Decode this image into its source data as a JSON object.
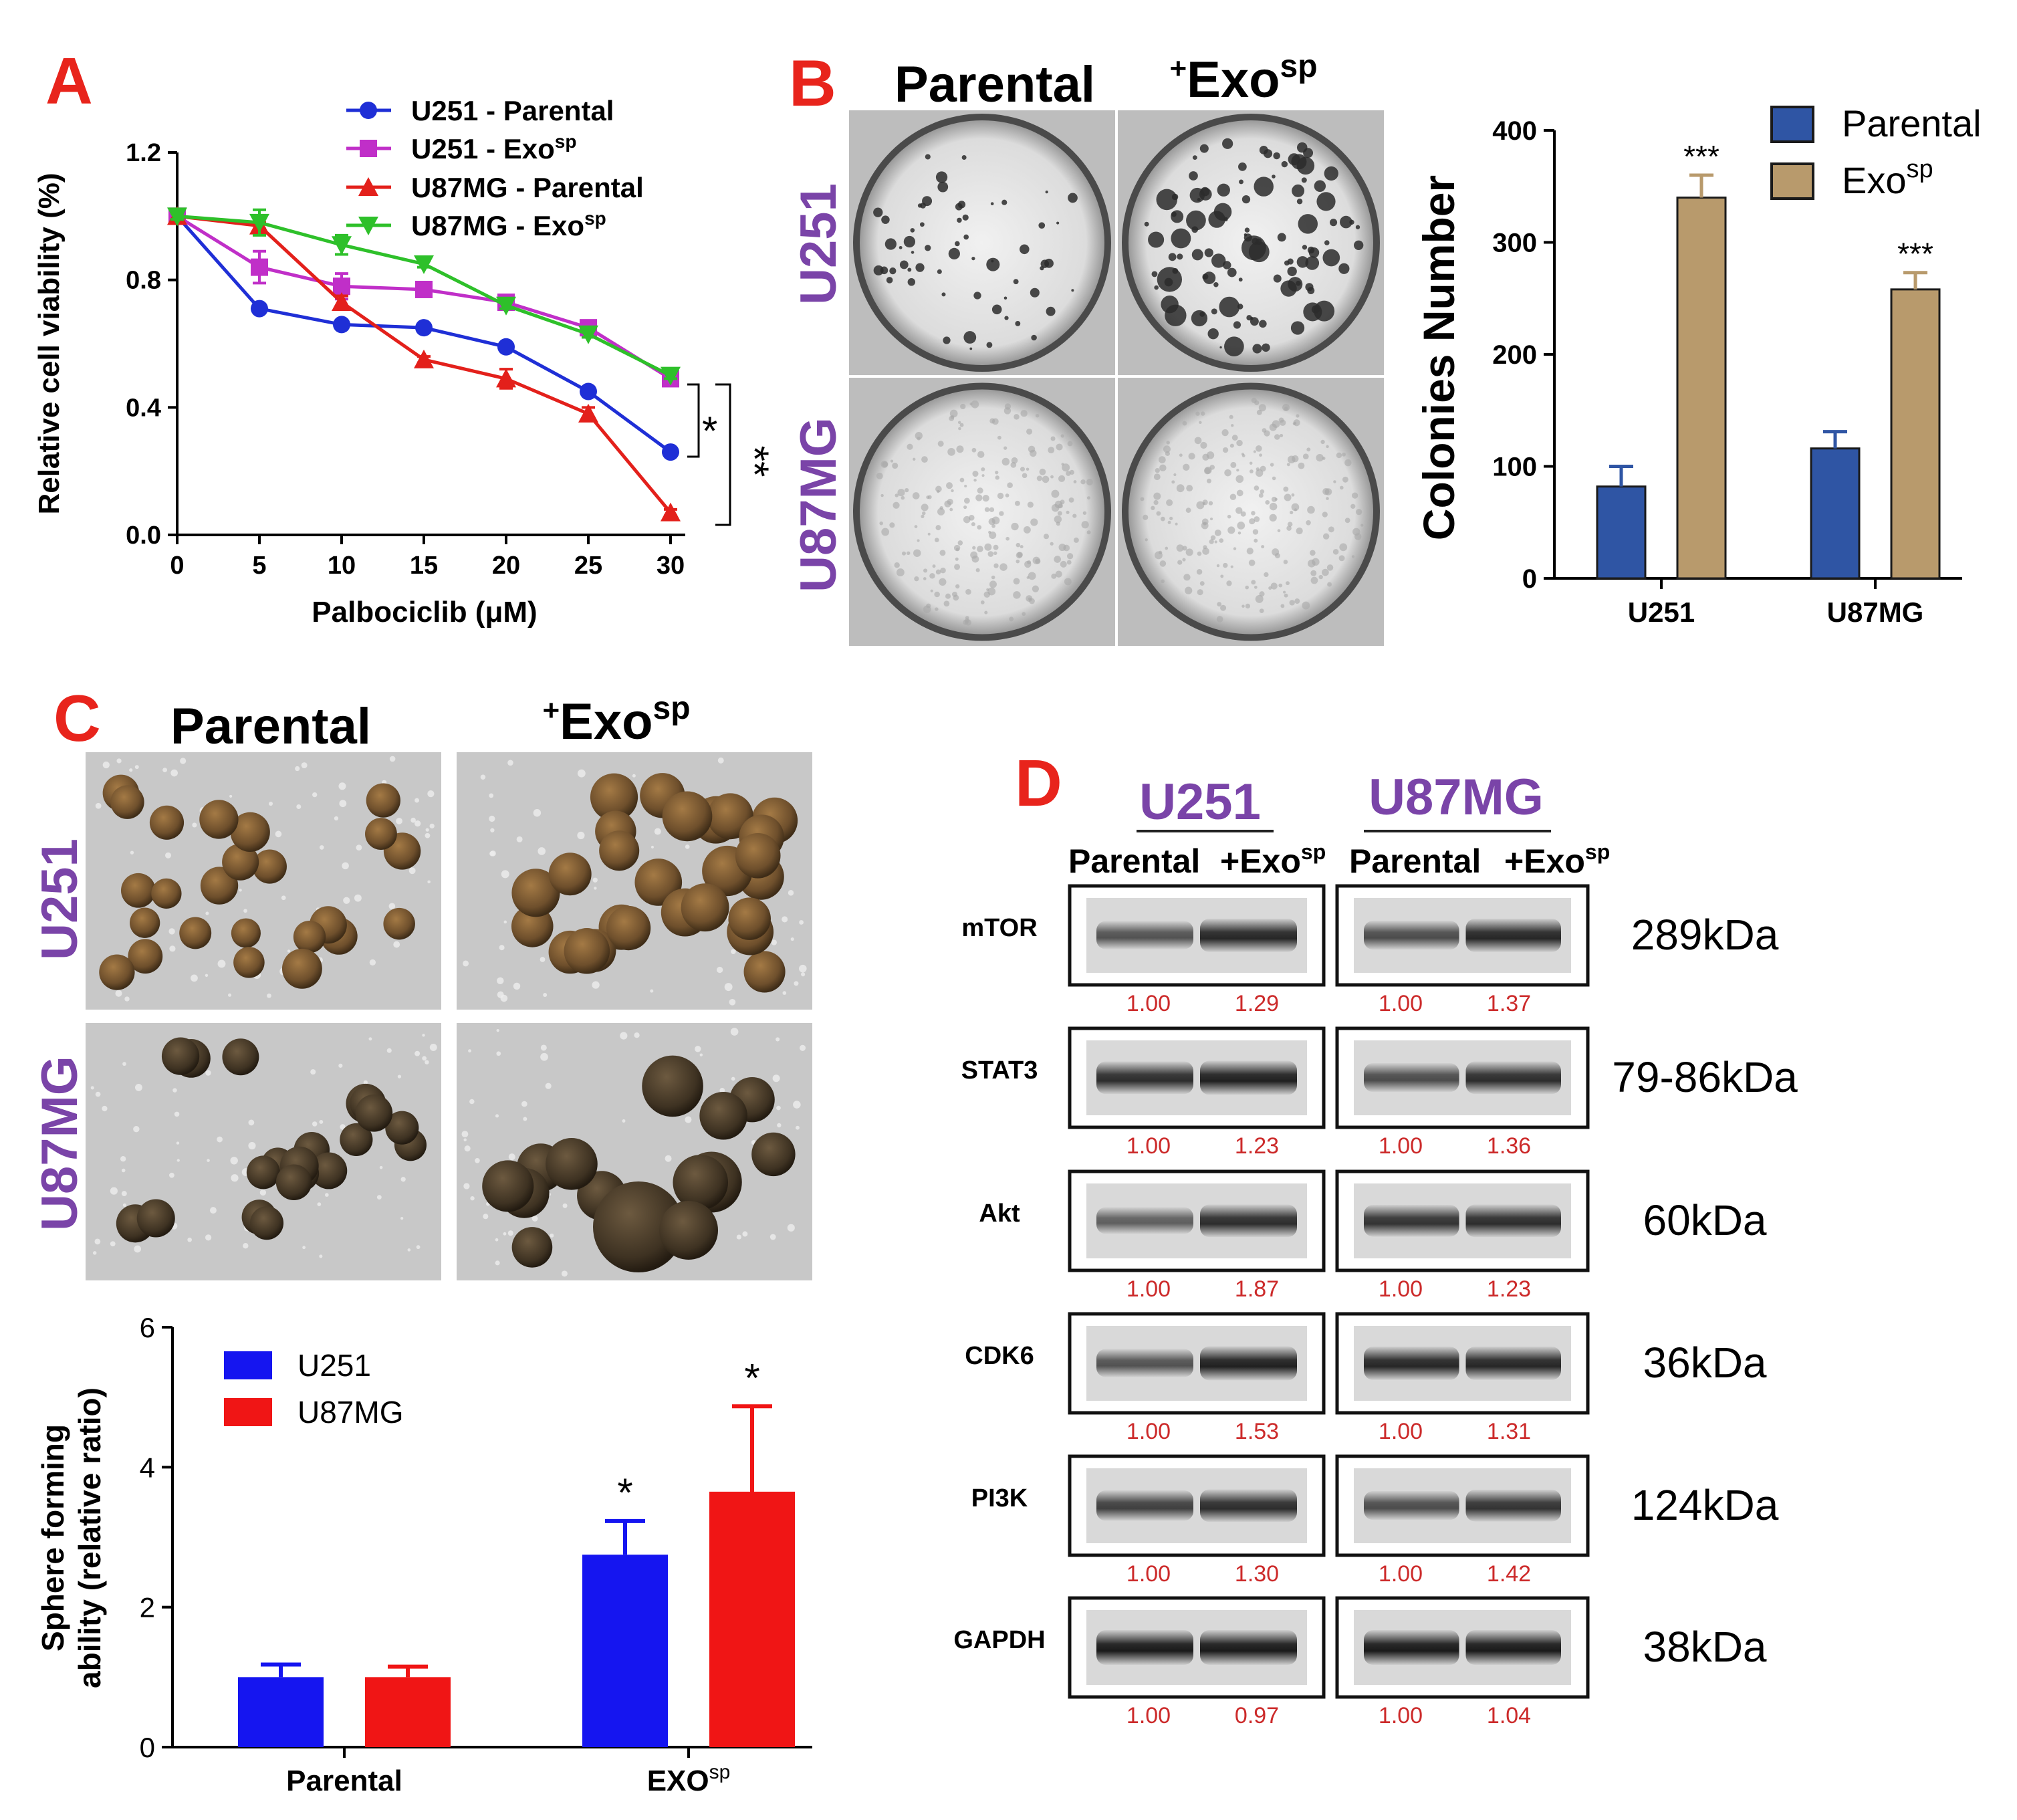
{
  "panels": {
    "a": "A",
    "b": "B",
    "c": "C",
    "d": "D"
  },
  "colors": {
    "letter": "#e8241c",
    "purple": "#7a44a8",
    "u251_parental": "#1f2fd6",
    "u251_exo": "#c02fc8",
    "u87_parental": "#e3201b",
    "u87_exo": "#2ec02a",
    "bar_parental": "#2f55a4",
    "bar_exo": "#b89a6c",
    "bar_blue": "#1515f0",
    "bar_red": "#f01515",
    "ratio_text": "#cc2a2a"
  },
  "panelA": {
    "sig_inner": "*",
    "sig_outer": "**",
    "chart_data": {
      "type": "line",
      "title": "",
      "xlabel": "Palbociclib (μM)",
      "ylabel": "Relative cell viability (%)",
      "x": [
        0,
        5,
        10,
        15,
        20,
        25,
        30
      ],
      "xticks": [
        "0",
        "5",
        "10",
        "15",
        "20",
        "25",
        "30"
      ],
      "yticks": [
        "0.0",
        "0.4",
        "0.8",
        "1.2"
      ],
      "ylim": [
        0,
        1.2
      ],
      "series": [
        {
          "name": "U251 - Parental",
          "marker": "circle",
          "values": [
            1.0,
            0.71,
            0.66,
            0.65,
            0.59,
            0.45,
            0.26
          ],
          "err": [
            0.01,
            0.01,
            0.01,
            0.01,
            0.01,
            0.01,
            0.01
          ]
        },
        {
          "name": "U251 - Exo",
          "sup": "sp",
          "marker": "square",
          "values": [
            1.0,
            0.84,
            0.78,
            0.77,
            0.73,
            0.65,
            0.49
          ],
          "err": [
            0.01,
            0.05,
            0.04,
            0.01,
            0.01,
            0.01,
            0.01
          ]
        },
        {
          "name": "U87MG - Parental",
          "marker": "triangle",
          "values": [
            1.0,
            0.97,
            0.73,
            0.55,
            0.49,
            0.38,
            0.07
          ],
          "err": [
            0.01,
            0.01,
            0.02,
            0.01,
            0.03,
            0.02,
            0.01
          ]
        },
        {
          "name": "U87MG - Exo",
          "sup": "sp",
          "marker": "triangle-down",
          "values": [
            1.0,
            0.98,
            0.91,
            0.85,
            0.72,
            0.63,
            0.5
          ],
          "err": [
            0.01,
            0.04,
            0.03,
            0.01,
            0.01,
            0.01,
            0.01
          ]
        }
      ]
    }
  },
  "panelB": {
    "col_parental": "Parental",
    "col_exo_prefix": "+",
    "col_exo": "Exo",
    "col_exo_sup": "sp",
    "row_u251": "U251",
    "row_u87": "U87MG",
    "chart_data": {
      "type": "bar",
      "title": "",
      "ylabel": "Colonies Number",
      "categories": [
        "U251",
        "U87MG"
      ],
      "yticks": [
        "0",
        "100",
        "200",
        "300",
        "400"
      ],
      "ylim": [
        0,
        400
      ],
      "series": [
        {
          "name": "Parental",
          "values": [
            82,
            116
          ],
          "err": [
            18,
            15
          ]
        },
        {
          "name": "Exo",
          "sup": "sp",
          "values": [
            340,
            258
          ],
          "err": [
            20,
            15
          ]
        }
      ],
      "annotations": [
        "***",
        "***"
      ]
    }
  },
  "panelC": {
    "col_parental": "Parental",
    "col_exo_prefix": "+",
    "col_exo": "Exo",
    "col_exo_sup": "sp",
    "row_u251": "U251",
    "row_u87": "U87MG",
    "chart_data": {
      "type": "bar",
      "title": "",
      "ylabel_line1": "Sphere forming",
      "ylabel_line2": "ability (relative ratio)",
      "categories": [
        "Parental",
        "EXO"
      ],
      "category_sup": [
        "",
        "sp"
      ],
      "yticks": [
        "0",
        "2",
        "4",
        "6"
      ],
      "ylim": [
        0,
        6
      ],
      "series": [
        {
          "name": "U251",
          "values": [
            1.0,
            2.75
          ],
          "err": [
            0.18,
            0.48
          ]
        },
        {
          "name": "U87MG",
          "values": [
            1.0,
            3.65
          ],
          "err": [
            0.15,
            1.22
          ]
        }
      ],
      "annotations": [
        "*",
        "*"
      ]
    }
  },
  "panelD": {
    "group_u251": "U251",
    "group_u87": "U87MG",
    "lane_parental": "Parental",
    "lane_exo_prefix": "+Exo",
    "lane_exo_sup": "sp",
    "blots": [
      {
        "protein": "mTOR",
        "kda": "289kDa",
        "ratios": [
          "1.00",
          "1.29",
          "1.00",
          "1.37"
        ]
      },
      {
        "protein": "STAT3",
        "kda": "79-86kDa",
        "ratios": [
          "1.00",
          "1.23",
          "1.00",
          "1.36"
        ]
      },
      {
        "protein": "Akt",
        "kda": "60kDa",
        "ratios": [
          "1.00",
          "1.87",
          "1.00",
          "1.23"
        ]
      },
      {
        "protein": "CDK6",
        "kda": "36kDa",
        "ratios": [
          "1.00",
          "1.53",
          "1.00",
          "1.31"
        ]
      },
      {
        "protein": "PI3K",
        "kda": "124kDa",
        "ratios": [
          "1.00",
          "1.30",
          "1.00",
          "1.42"
        ]
      },
      {
        "protein": "GAPDH",
        "kda": "38kDa",
        "ratios": [
          "1.00",
          "0.97",
          "1.00",
          "1.04"
        ]
      }
    ]
  }
}
